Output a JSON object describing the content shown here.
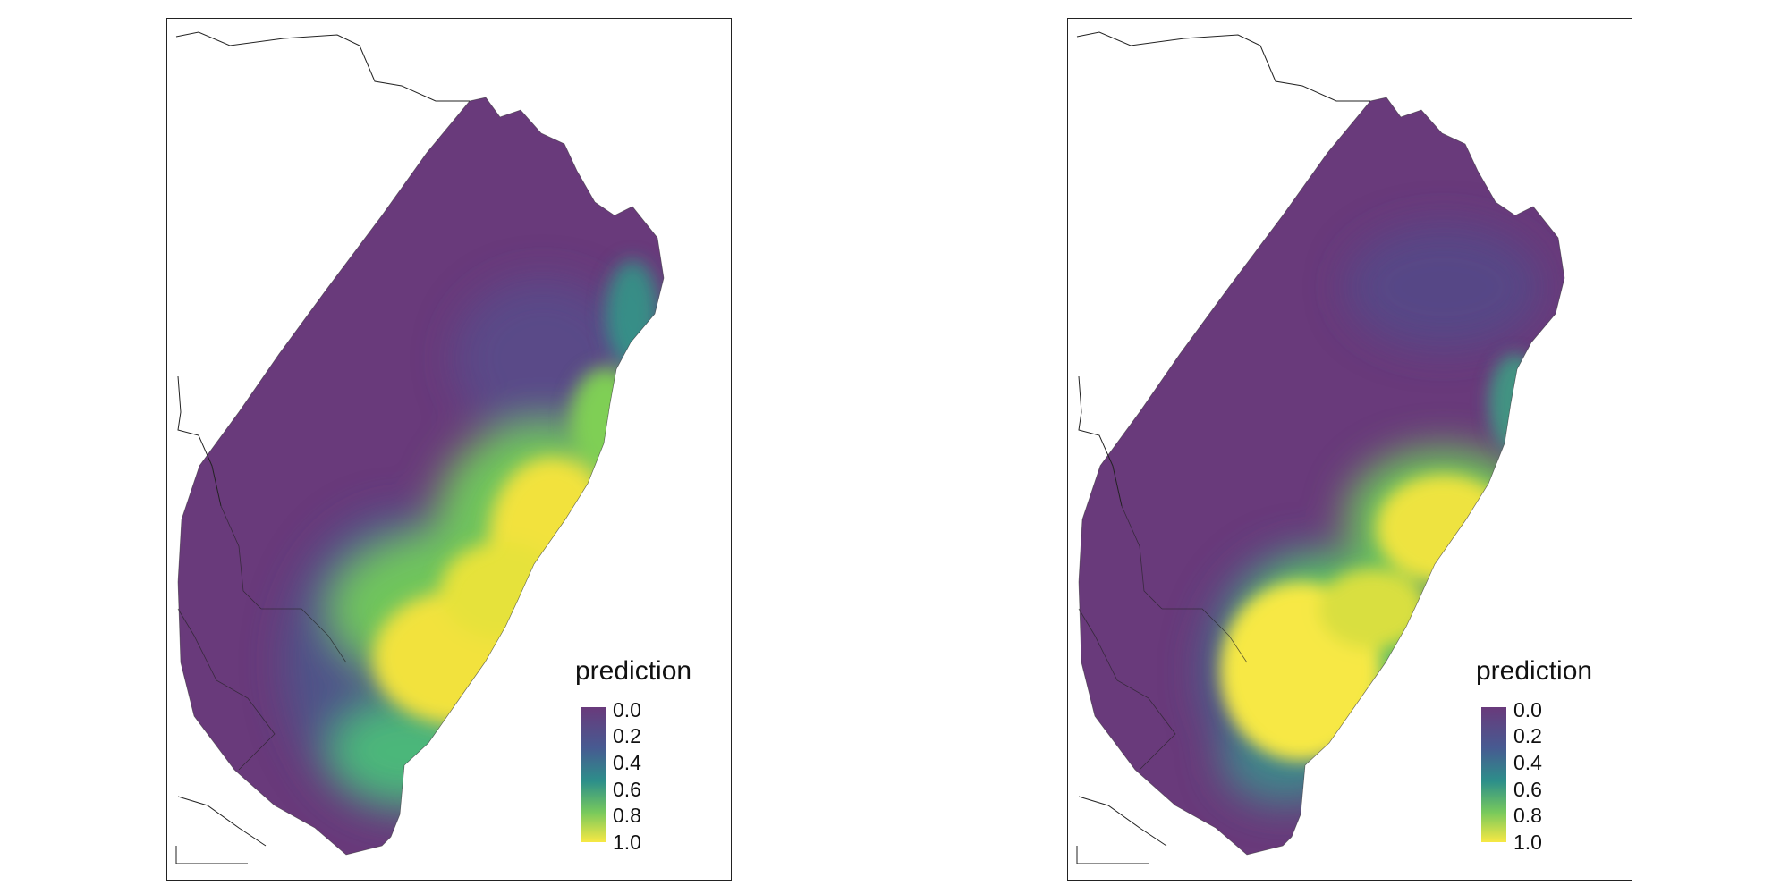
{
  "maps": [
    {
      "legend": {
        "title": "prediction",
        "ticks": [
          "0.0",
          "0.2",
          "0.4",
          "0.6",
          "0.8",
          "1.0"
        ]
      }
    },
    {
      "legend": {
        "title": "prediction",
        "ticks": [
          "0.0",
          "0.2",
          "0.4",
          "0.6",
          "0.8",
          "1.0"
        ]
      }
    }
  ],
  "colorscale": {
    "name": "viridis",
    "range": [
      0,
      1
    ],
    "colors": [
      "#440154",
      "#3b528b",
      "#21918c",
      "#5ec962",
      "#fde725"
    ]
  }
}
